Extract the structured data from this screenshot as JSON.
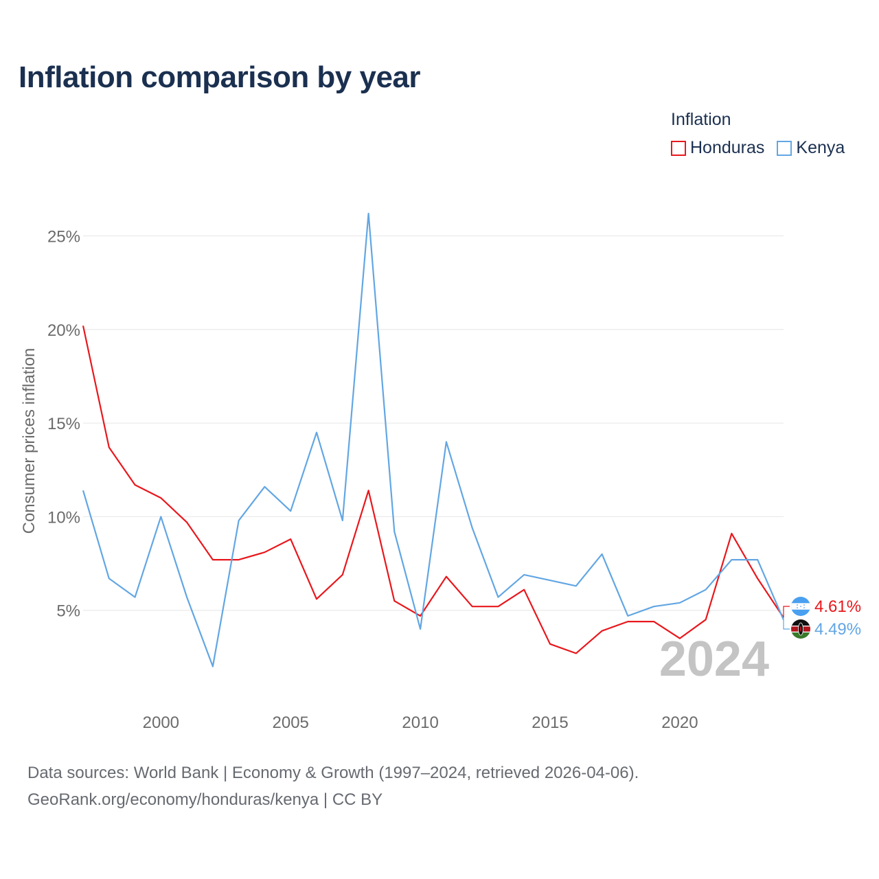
{
  "title": "Inflation comparison by year",
  "legend": {
    "title": "Inflation",
    "items": [
      {
        "label": "Honduras",
        "color": "#e8171c"
      },
      {
        "label": "Kenya",
        "color": "#62a6e3"
      }
    ]
  },
  "chart_data": {
    "type": "line",
    "title": "Inflation comparison by year",
    "xlabel": "",
    "ylabel": "Consumer prices inflation",
    "xlim": [
      1997,
      2024
    ],
    "ylim": [
      0,
      26.5
    ],
    "yticks": [
      5,
      10,
      15,
      20,
      25
    ],
    "ytick_labels": [
      "5%",
      "10%",
      "15%",
      "20%",
      "25%"
    ],
    "xticks": [
      2000,
      2005,
      2010,
      2015,
      2020
    ],
    "xtick_labels": [
      "2000",
      "2005",
      "2010",
      "2015",
      "2020"
    ],
    "grid": true,
    "legend_position": "top-right",
    "year_label": "2024",
    "x": [
      1997,
      1998,
      1999,
      2000,
      2001,
      2002,
      2003,
      2004,
      2005,
      2006,
      2007,
      2008,
      2009,
      2010,
      2011,
      2012,
      2013,
      2014,
      2015,
      2016,
      2017,
      2018,
      2019,
      2020,
      2021,
      2022,
      2023,
      2024
    ],
    "series": [
      {
        "name": "Honduras",
        "color": "#e8171c",
        "end_label": "4.61%",
        "values": [
          20.2,
          13.7,
          11.7,
          11.0,
          9.7,
          7.7,
          7.7,
          8.1,
          8.8,
          5.6,
          6.9,
          11.4,
          5.5,
          4.7,
          6.8,
          5.2,
          5.2,
          6.1,
          3.2,
          2.7,
          3.9,
          4.4,
          4.4,
          3.5,
          4.5,
          9.1,
          6.7,
          4.61
        ]
      },
      {
        "name": "Kenya",
        "color": "#62a6e3",
        "end_label": "4.49%",
        "values": [
          11.4,
          6.7,
          5.7,
          10.0,
          5.7,
          2.0,
          9.8,
          11.6,
          10.3,
          14.5,
          9.8,
          26.2,
          9.2,
          4.0,
          14.0,
          9.4,
          5.7,
          6.9,
          6.6,
          6.3,
          8.0,
          4.7,
          5.2,
          5.4,
          6.1,
          7.7,
          7.7,
          4.49
        ]
      }
    ]
  },
  "source": {
    "line1": "Data sources: World Bank | Economy & Growth (1997–2024, retrieved 2026-04-06).",
    "line2": "GeoRank.org/economy/honduras/kenya | CC BY"
  }
}
